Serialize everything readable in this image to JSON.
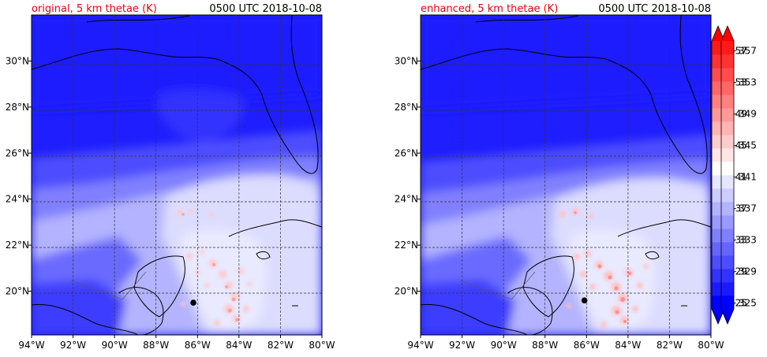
{
  "chart_data": [
    {
      "type": "heatmap",
      "title_left": "original, 5 km thetae (K)",
      "title_right": "0500 UTC 2018-10-08",
      "x_ticks": [
        "94°W",
        "92°W",
        "90°W",
        "88°W",
        "86°W",
        "84°W",
        "82°W",
        "80°W"
      ],
      "y_ticks": [
        "20°N",
        "22°N",
        "24°N",
        "26°N",
        "28°N",
        "30°N"
      ],
      "xlim": [
        -94,
        -80
      ],
      "ylim": [
        18.1,
        32.0
      ],
      "grid": true,
      "colorbar_ticks": [
        "325",
        "329",
        "333",
        "337",
        "341",
        "345",
        "349",
        "353",
        "357"
      ],
      "colorbar_range": [
        325,
        359
      ],
      "storm_center": {
        "lon": -86.2,
        "lat": 19.5
      }
    },
    {
      "type": "heatmap",
      "title_left": "enhanced, 5 km thetae (K)",
      "title_right": "0500 UTC 2018-10-08",
      "x_ticks": [
        "94°W",
        "92°W",
        "90°W",
        "88°W",
        "86°W",
        "84°W",
        "82°W",
        "80°W"
      ],
      "y_ticks": [
        "20°N",
        "22°N",
        "24°N",
        "26°N",
        "28°N",
        "30°N"
      ],
      "xlim": [
        -94,
        -80
      ],
      "ylim": [
        18.1,
        32.0
      ],
      "grid": true,
      "colorbar_ticks": [
        "325",
        "329",
        "333",
        "337",
        "341",
        "345",
        "349",
        "353",
        "357"
      ],
      "colorbar_range": [
        325,
        359
      ],
      "storm_center": {
        "lon": -86.1,
        "lat": 19.6
      }
    }
  ],
  "colors": {
    "title_left": "#e8000b",
    "title_right": "#000000",
    "level_colors": [
      "#0000ff",
      "#1a1aff",
      "#3333ff",
      "#4d4dff",
      "#6666ff",
      "#8080ff",
      "#9999ff",
      "#b3b3ff",
      "#ccccff",
      "#e6e6ff",
      "#ffffff",
      "#ffe6e6",
      "#ffcccc",
      "#ffb3b3",
      "#ff9999",
      "#ff8080",
      "#ff6666",
      "#ff4d4d",
      "#ff3333",
      "#ff1a1a"
    ],
    "under": "#0000ff",
    "over": "#ff0000"
  }
}
